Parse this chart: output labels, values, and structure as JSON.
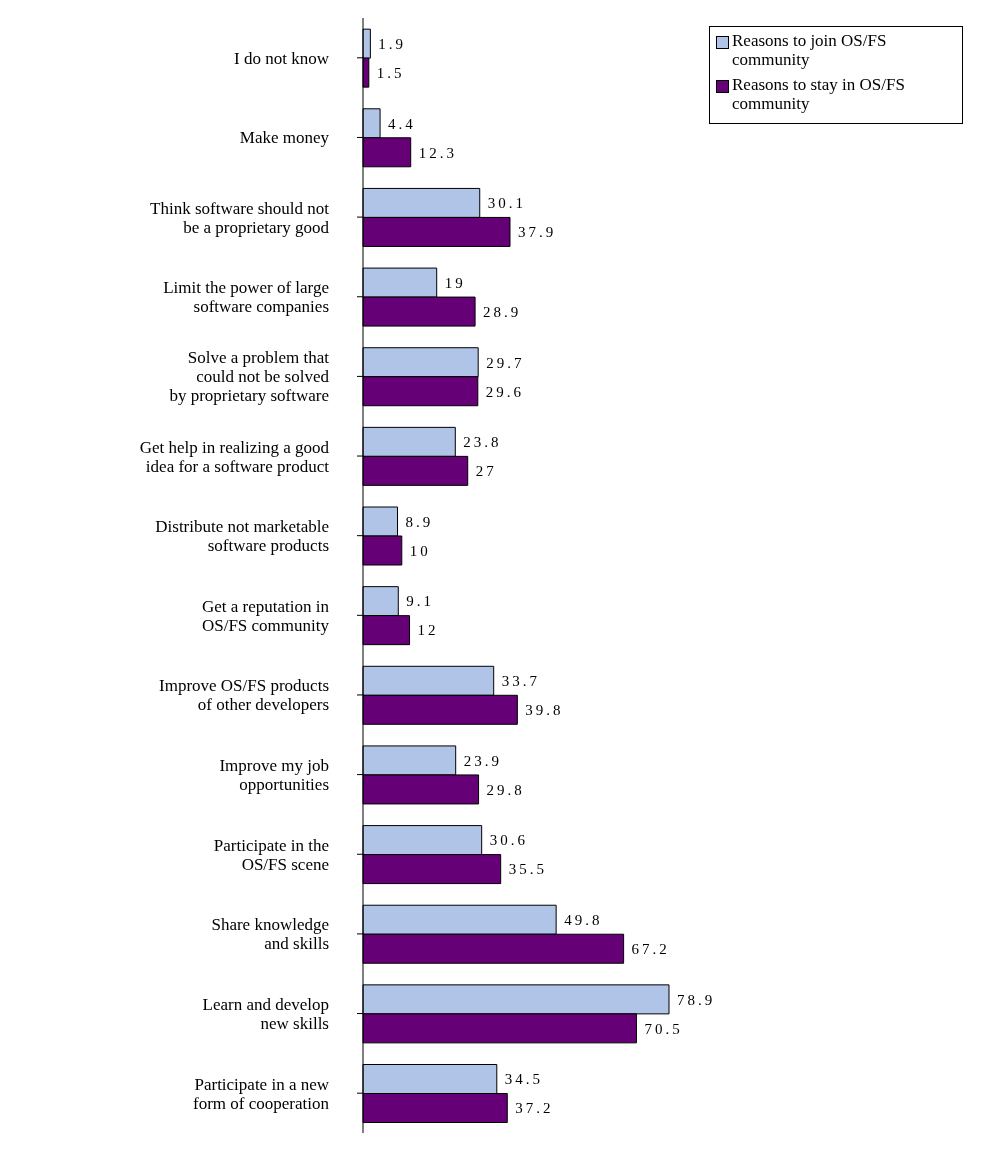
{
  "chart_data": {
    "type": "bar",
    "orientation": "horizontal",
    "categories": [
      "I do not know",
      "Make money",
      "Think software should not\nbe a proprietary good",
      "Limit the power of large\nsoftware companies",
      "Solve a problem that\ncould not be solved\nby proprietary software",
      "Get help in realizing a good\nidea for a software product",
      "Distribute not marketable\nsoftware products",
      "Get a reputation in\nOS/FS community",
      "Improve OS/FS products\nof other developers",
      "Improve my job\nopportunities",
      "Participate in the\nOS/FS scene",
      "Share knowledge\nand skills",
      "Learn and develop\nnew skills",
      "Participate in a new\nform of cooperation"
    ],
    "series": [
      {
        "name": "Reasons to join OS/FS community",
        "color": "#b0c4e8",
        "values": [
          1.9,
          4.4,
          30.1,
          19,
          29.7,
          23.8,
          8.9,
          9.1,
          33.7,
          23.9,
          30.6,
          49.8,
          78.9,
          34.5
        ]
      },
      {
        "name": "Reasons to stay in OS/FS community",
        "color": "#660077",
        "values": [
          1.5,
          12.3,
          37.9,
          28.9,
          29.6,
          27,
          10,
          12,
          39.8,
          29.8,
          35.5,
          67.2,
          70.5,
          37.2
        ]
      }
    ],
    "data_labels": true,
    "legend": "top right"
  }
}
